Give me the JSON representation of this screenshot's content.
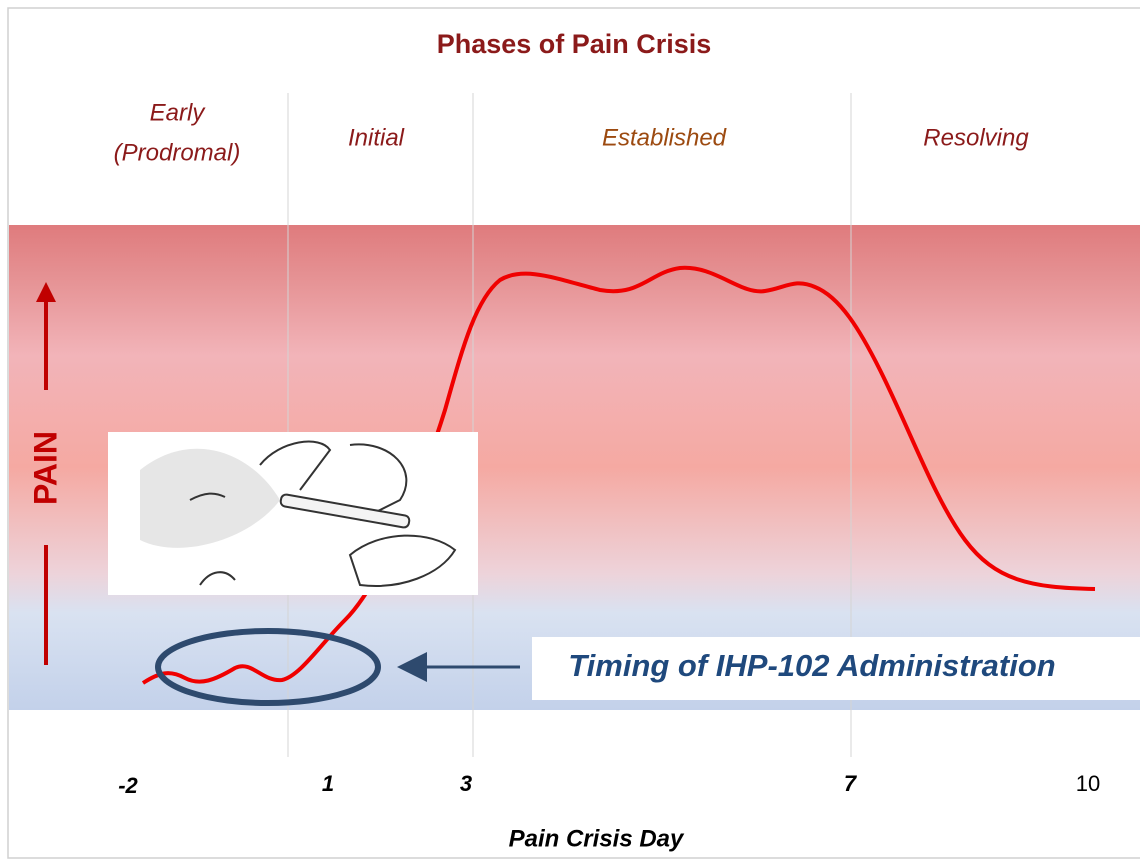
{
  "title": "Phases of Pain Crisis",
  "phases": [
    {
      "lines": [
        "Early",
        "(Prodromal)"
      ]
    },
    {
      "lines": [
        "Initial"
      ]
    },
    {
      "lines": [
        "Established"
      ]
    },
    {
      "lines": [
        "Resolving"
      ]
    }
  ],
  "y_label": "PAIN",
  "x_label": "Pain Crisis Day",
  "x_ticks": [
    -2,
    1,
    3,
    7,
    10
  ],
  "annotation": "Timing of IHP-102 Administration"
}
